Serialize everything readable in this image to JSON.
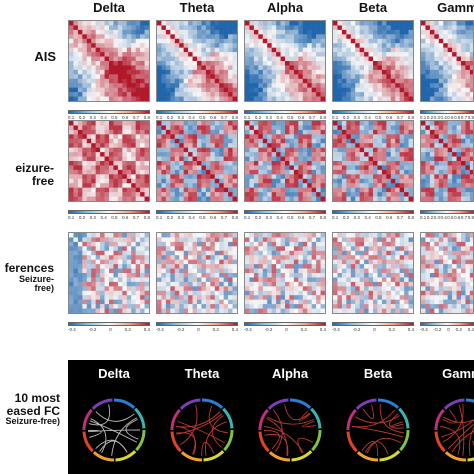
{
  "bands": [
    "Delta",
    "Theta",
    "Alpha",
    "Beta",
    "Gamma"
  ],
  "rows": {
    "ais": "AIS",
    "seizure_free": "eizure-free",
    "differences_line1": "ferences",
    "differences_line2": "Seizure-free)",
    "top_line1": "10 most",
    "top_line2": "eased FC",
    "top_line3": "Seizure-free)"
  },
  "colorbar_ais": [
    "0.1",
    "0.2",
    "0.3",
    "0.4",
    "0.5",
    "0.6",
    "0.7",
    "0.8"
  ],
  "colorbar_diff": [
    "-0.4",
    "-0.2",
    "0",
    "0.2",
    "0.4"
  ],
  "colors": {
    "red": "#b2182b",
    "white": "#f7f7f7",
    "blue": "#2166ac"
  }
}
